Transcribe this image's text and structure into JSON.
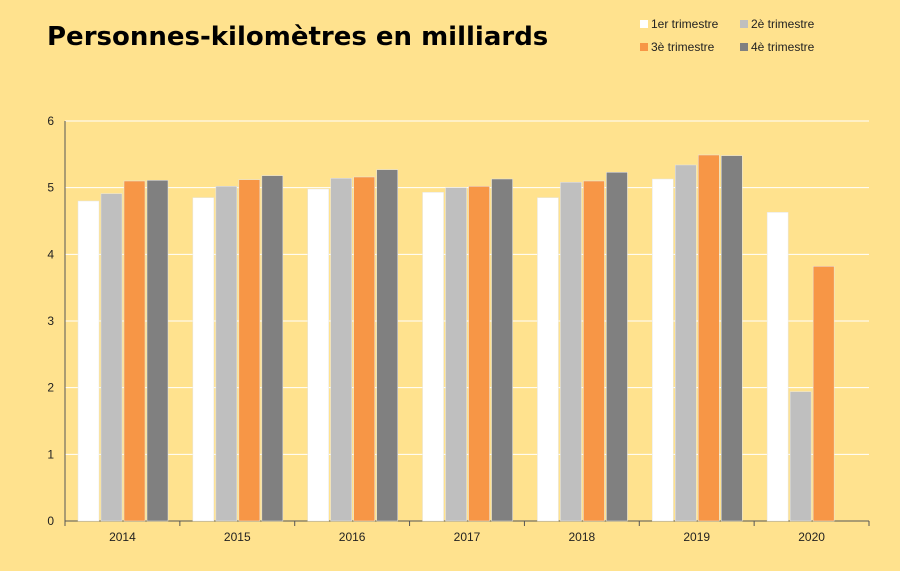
{
  "chart_data": {
    "type": "bar",
    "title": "Personnes-kilomètres en milliards",
    "xlabel": "",
    "ylabel": "",
    "ylim": [
      0,
      6
    ],
    "yticks": [
      0,
      1,
      2,
      3,
      4,
      5,
      6
    ],
    "grid": true,
    "legend_position": "top-right",
    "categories": [
      "2014",
      "2015",
      "2016",
      "2017",
      "2018",
      "2019",
      "2020"
    ],
    "series": [
      {
        "name": "1er trimestre",
        "color": "#FFFFFF",
        "values": [
          4.8,
          4.85,
          4.98,
          4.93,
          4.85,
          5.13,
          4.63
        ]
      },
      {
        "name": "2è trimestre",
        "color": "#BFBFBF",
        "values": [
          4.91,
          5.02,
          5.14,
          5.0,
          5.08,
          5.34,
          1.94
        ]
      },
      {
        "name": "3è trimestre",
        "color": "#F79646",
        "values": [
          5.1,
          5.12,
          5.16,
          5.02,
          5.1,
          5.49,
          3.82
        ]
      },
      {
        "name": "4è trimestre",
        "color": "#808080",
        "values": [
          5.11,
          5.18,
          5.27,
          5.13,
          5.23,
          5.48,
          null
        ]
      }
    ]
  },
  "colors": {
    "background": "#FFE28E",
    "grid": "#FFFFFF",
    "axis": "#555555"
  }
}
